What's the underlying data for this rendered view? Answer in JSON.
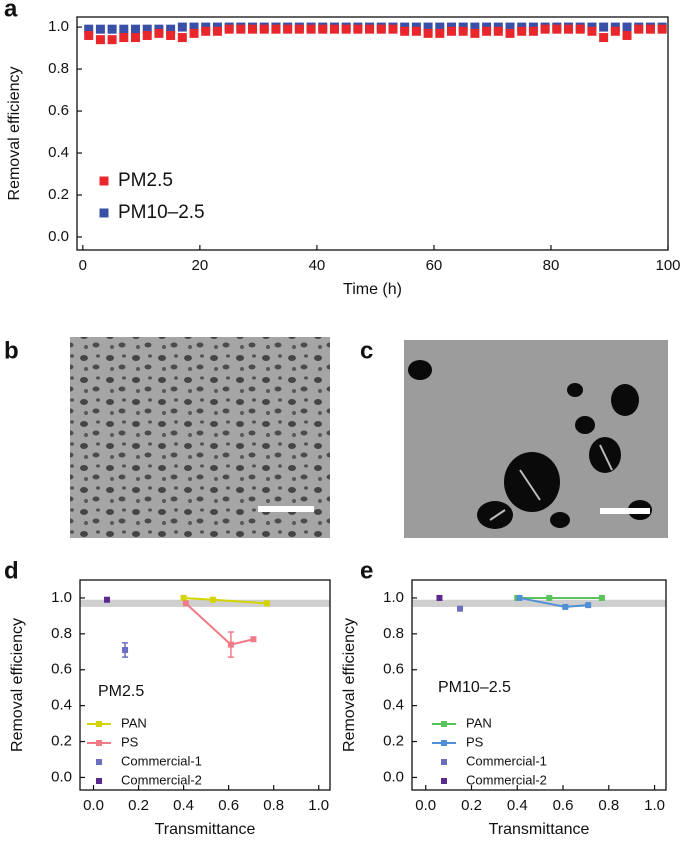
{
  "chart_data": [
    {
      "panel_label": "a",
      "type": "scatter",
      "x_label": "Time (h)",
      "y_label": "Removal efficiency",
      "xlim": [
        -1,
        100
      ],
      "ylim": [
        -0.062,
        1.048
      ],
      "xticks": [
        0,
        20,
        40,
        60,
        80,
        100
      ],
      "yticks": [
        {
          "value": 0,
          "label": "0.0"
        },
        0.2,
        0.4,
        0.6,
        0.8,
        {
          "value": 1,
          "label": "1.0"
        }
      ],
      "legend": "lower left",
      "x": [
        1,
        3,
        5,
        7,
        9,
        11,
        13,
        15,
        17,
        19,
        21,
        23,
        25,
        27,
        29,
        31,
        33,
        35,
        37,
        39,
        41,
        43,
        45,
        47,
        49,
        51,
        53,
        55,
        57,
        59,
        61,
        63,
        65,
        67,
        69,
        71,
        73,
        75,
        77,
        79,
        81,
        83,
        85,
        87,
        89,
        91,
        93,
        95,
        97,
        99
      ],
      "series": [
        {
          "name": "PM2.5",
          "color": "#e8262b",
          "values": [
            0.96,
            0.94,
            0.94,
            0.95,
            0.95,
            0.96,
            0.97,
            0.96,
            0.95,
            0.97,
            0.98,
            0.98,
            0.99,
            0.99,
            0.99,
            0.99,
            0.99,
            0.99,
            0.99,
            0.99,
            0.99,
            0.99,
            0.99,
            0.99,
            0.99,
            0.99,
            0.99,
            0.98,
            0.98,
            0.97,
            0.97,
            0.98,
            0.98,
            0.97,
            0.98,
            0.98,
            0.97,
            0.98,
            0.98,
            0.99,
            0.99,
            0.99,
            0.99,
            0.98,
            0.95,
            0.98,
            0.96,
            0.99,
            0.99,
            0.99
          ]
        },
        {
          "name": "PM10–2.5",
          "color": "#3a50a8",
          "values": [
            0.99,
            0.99,
            0.99,
            0.99,
            0.99,
            0.99,
            0.99,
            0.99,
            1,
            1,
            1,
            1,
            1,
            1,
            1,
            1,
            1,
            1,
            1,
            1,
            1,
            1,
            1,
            1,
            1,
            1,
            1,
            1,
            1,
            1,
            1,
            1,
            1,
            1,
            1,
            1,
            1,
            1,
            1,
            1,
            1,
            1,
            1,
            1,
            1,
            1,
            1,
            1,
            1,
            1
          ]
        }
      ]
    },
    {
      "panel_label": "d",
      "type": "line",
      "x_label": "Transmittance",
      "y_label": "Removal efficiency",
      "annotation": "PM2.5",
      "xlim": [
        -0.06,
        1.05
      ],
      "ylim": [
        -0.07,
        1.1
      ],
      "xticks": [
        {
          "value": 0,
          "label": "0.0"
        },
        0.2,
        0.4,
        0.6,
        0.8,
        {
          "value": 1,
          "label": "1.0"
        }
      ],
      "yticks": [
        {
          "value": 0,
          "label": "0.0"
        },
        0.2,
        0.4,
        0.6,
        0.8,
        {
          "value": 1,
          "label": "1.0"
        }
      ],
      "band": [
        0.95,
        0.99
      ],
      "legend": "lower left",
      "series": [
        {
          "name": "PAN",
          "color": "#d4d400",
          "mode": "lines+markers",
          "x": [
            0.4,
            0.53,
            0.77
          ],
          "values": [
            1.0,
            0.99,
            0.97
          ]
        },
        {
          "name": "PS",
          "color": "#f07b86",
          "mode": "lines+markers",
          "x": [
            0.41,
            0.61,
            0.71
          ],
          "values": [
            0.97,
            0.74,
            0.77
          ],
          "errors": [
            null,
            0.07,
            null
          ]
        },
        {
          "name": "Commercial-1",
          "color": "#6a6fc0",
          "mode": "markers",
          "x": [
            0.14
          ],
          "values": [
            0.71
          ],
          "errors": [
            0.04
          ]
        },
        {
          "name": "Commercial-2",
          "color": "#5a2a8e",
          "mode": "markers",
          "x": [
            0.06
          ],
          "values": [
            0.99
          ]
        }
      ]
    },
    {
      "panel_label": "e",
      "type": "line",
      "x_label": "Transmittance",
      "y_label": "Removal efficiency",
      "annotation": "PM10–2.5",
      "xlim": [
        -0.06,
        1.05
      ],
      "ylim": [
        -0.07,
        1.1
      ],
      "xticks": [
        {
          "value": 0,
          "label": "0.0"
        },
        0.2,
        0.4,
        0.6,
        0.8,
        {
          "value": 1,
          "label": "1.0"
        }
      ],
      "yticks": [
        {
          "value": 0,
          "label": "0.0"
        },
        0.2,
        0.4,
        0.6,
        0.8,
        {
          "value": 1,
          "label": "1.0"
        }
      ],
      "band": [
        0.95,
        0.99
      ],
      "legend": "lower left",
      "series": [
        {
          "name": "PAN",
          "color": "#5cc25c",
          "mode": "lines+markers",
          "x": [
            0.4,
            0.54,
            0.77
          ],
          "values": [
            1.0,
            1.0,
            1.0
          ]
        },
        {
          "name": "PS",
          "color": "#4f8fd6",
          "mode": "lines+markers",
          "x": [
            0.41,
            0.61,
            0.71
          ],
          "values": [
            1.0,
            0.95,
            0.96
          ]
        },
        {
          "name": "Commercial-1",
          "color": "#6a6fc0",
          "mode": "markers",
          "x": [
            0.15
          ],
          "values": [
            0.94
          ]
        },
        {
          "name": "Commercial-2",
          "color": "#5a2a8e",
          "mode": "markers",
          "x": [
            0.06
          ],
          "values": [
            1.0
          ]
        }
      ]
    }
  ],
  "images": [
    {
      "panel_label": "b"
    },
    {
      "panel_label": "c"
    }
  ]
}
